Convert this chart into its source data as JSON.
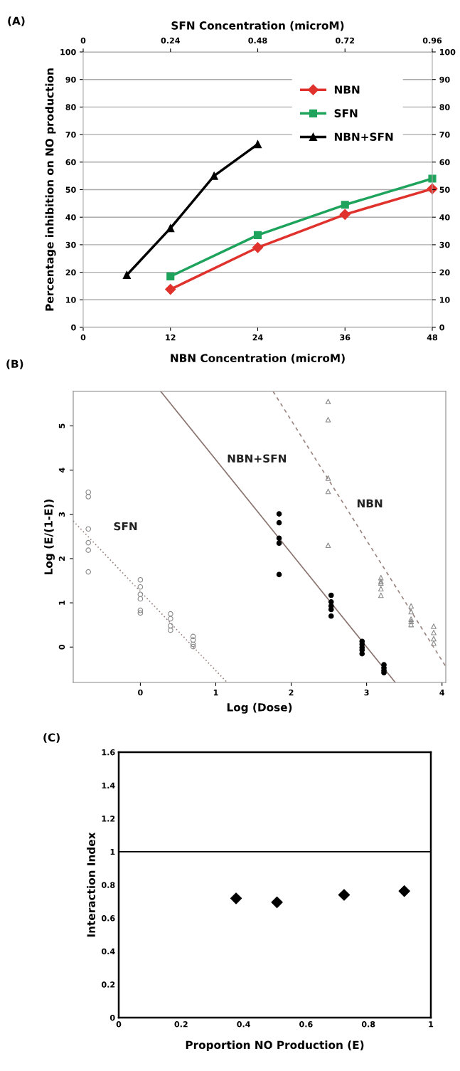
{
  "chart_data": [
    {
      "type": "line",
      "annotations": [
        "(A)"
      ],
      "xlabel": "NBN Concentration (microM)",
      "x2label": "SFN Concentration (microM)",
      "ylabel": "Percentage inhibition on NO production",
      "xlim": [
        0,
        48
      ],
      "xticks": [
        0,
        12,
        24,
        36,
        48
      ],
      "x2lim": [
        0,
        0.96
      ],
      "x2ticks": [
        0,
        0.24,
        0.48,
        0.72,
        0.96
      ],
      "ylim": [
        0,
        100
      ],
      "yticks": [
        0,
        10,
        20,
        30,
        40,
        50,
        60,
        70,
        80,
        90,
        100
      ],
      "y2lim": [
        0,
        100
      ],
      "y2ticks": [
        0,
        10,
        20,
        30,
        40,
        50,
        60,
        70,
        80,
        90,
        100
      ],
      "grid": "y",
      "legend": "top right",
      "series": [
        {
          "name": "NBN",
          "color": "#e0322c",
          "marker": "diamond",
          "x": [
            12,
            24,
            36,
            48
          ],
          "values": [
            13.8,
            29,
            41,
            50.3
          ]
        },
        {
          "name": "SFN",
          "color": "#1ea35c",
          "marker": "square",
          "x": [
            12,
            24,
            36,
            48
          ],
          "values": [
            18.5,
            33.5,
            44.5,
            54
          ]
        },
        {
          "name": "NBN+SFN",
          "color": "#000000",
          "marker": "triangle",
          "x": [
            6,
            12,
            18,
            24
          ],
          "values": [
            19,
            36,
            55,
            66.5
          ]
        }
      ]
    },
    {
      "type": "scatter",
      "annotations": [
        "(B)"
      ],
      "xlabel": "Log (Dose)",
      "ylabel": "Log (E/(1-E))",
      "xlim": [
        -0.89,
        4.05
      ],
      "xticks": [
        0,
        1,
        2,
        3,
        4
      ],
      "ylim": [
        -0.8,
        5.78
      ],
      "yticks": [
        0,
        1,
        2,
        3,
        4,
        5
      ],
      "grid": false,
      "series": [
        {
          "color": "#8a8a8a",
          "marker": "circle",
          "x": [
            -0.69,
            -0.69,
            -0.69,
            -0.69,
            -0.69,
            -0.69,
            0,
            0,
            0,
            0,
            0,
            0,
            0.4,
            0.4,
            0.4,
            0.4,
            0.7,
            0.7,
            0.7,
            0.7
          ],
          "values": [
            3.5,
            3.4,
            2.67,
            2.36,
            2.19,
            1.7,
            1.52,
            1.36,
            1.19,
            1.09,
            0.83,
            0.77,
            0.75,
            0.64,
            0.48,
            0.38,
            0.24,
            0.16,
            0.06,
            0.01
          ]
        },
        {
          "color": "#000000",
          "marker": "circle",
          "x": [
            1.84,
            1.84,
            1.84,
            1.84,
            1.84,
            2.53,
            2.53,
            2.53,
            2.53,
            2.53,
            2.94,
            2.94,
            2.94,
            2.94,
            2.94,
            3.23,
            3.23,
            3.23,
            3.23
          ],
          "values": [
            3.01,
            2.81,
            2.46,
            2.35,
            1.64,
            1.17,
            1.02,
            0.93,
            0.85,
            0.7,
            0.13,
            0.06,
            -0.01,
            -0.07,
            -0.15,
            -0.4,
            -0.47,
            -0.53,
            -0.58
          ]
        },
        {
          "color": "#8a8a8a",
          "marker": "triangle",
          "x": [
            2.49,
            2.49,
            2.49,
            2.49,
            2.49,
            3.19,
            3.19,
            3.19,
            3.19,
            3.19,
            3.59,
            3.59,
            3.59,
            3.59,
            3.59,
            3.89,
            3.89,
            3.89,
            3.89
          ],
          "values": [
            5.55,
            5.14,
            3.82,
            3.52,
            2.3,
            1.57,
            1.49,
            1.45,
            1.32,
            1.17,
            0.93,
            0.8,
            0.63,
            0.58,
            0.51,
            0.47,
            0.33,
            0.19,
            0.09
          ]
        },
        {
          "type": "line",
          "name": "SFN",
          "color": "#9a8580",
          "line_style": "dotted",
          "x": [
            -0.89,
            1.15
          ],
          "values": [
            2.85,
            -0.8
          ]
        },
        {
          "type": "line",
          "name": "NBN+SFN",
          "color": "#8a7570",
          "line_style": "solid",
          "x": [
            0.27,
            3.38
          ],
          "values": [
            5.78,
            -0.8
          ]
        },
        {
          "type": "line",
          "name": "NBN",
          "color": "#9a8580",
          "line_style": "dashed",
          "x": [
            1.76,
            4.05
          ],
          "values": [
            5.78,
            -0.44
          ]
        }
      ]
    },
    {
      "type": "scatter",
      "annotations": [
        "(C)"
      ],
      "xlabel": "Proportion NO Production (E)",
      "ylabel": "Interaction Index",
      "xlim": [
        0,
        1
      ],
      "xticks": [
        0,
        0.2,
        0.4,
        0.6,
        0.8,
        1
      ],
      "ylim": [
        0,
        1.6
      ],
      "yticks": [
        0,
        0.2,
        0.4,
        0.6,
        0.8,
        1,
        1.2,
        1.4,
        1.6
      ],
      "grid": false,
      "marker": "diamond",
      "ref_lines": [
        {
          "axis": "y",
          "value": 1,
          "color": "#000000"
        }
      ],
      "series": [
        {
          "color": "#000000",
          "x": [
            0.376,
            0.507,
            0.722,
            0.915
          ],
          "values": [
            0.719,
            0.695,
            0.74,
            0.763
          ]
        }
      ]
    }
  ]
}
